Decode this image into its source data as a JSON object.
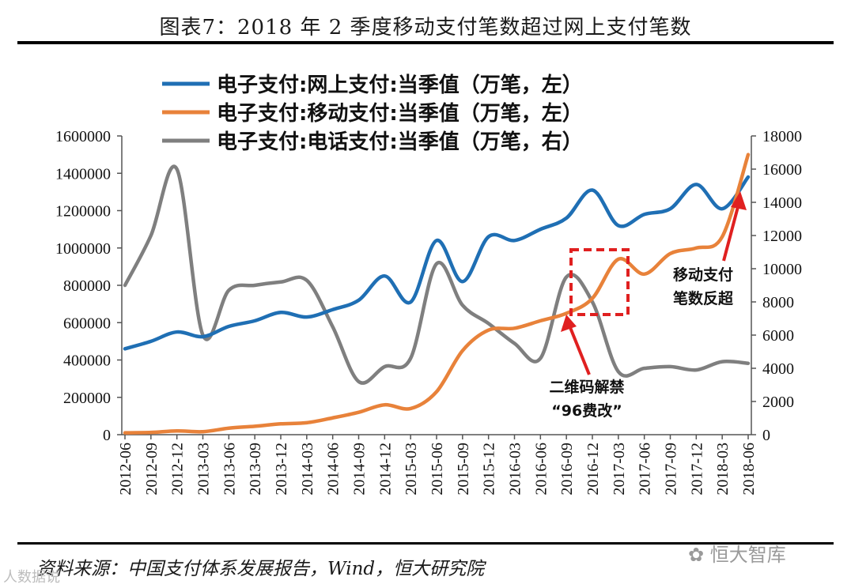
{
  "header": {
    "title": "图表7：2018 年 2 季度移动支付笔数超过网上支付笔数"
  },
  "footer": {
    "source": "资料来源：中国支付体系发展报告，Wind，恒大研究院",
    "watermark_right": "恒大智库",
    "watermark_left": "人数据说"
  },
  "colors": {
    "online": "#1f6fb4",
    "mobile": "#e8823a",
    "phone": "#7f7f7f",
    "highlight": "#e02020"
  },
  "chart_data": {
    "type": "line",
    "x": [
      "2012-06",
      "2012-09",
      "2012-12",
      "2013-03",
      "2013-06",
      "2013-09",
      "2013-12",
      "2014-03",
      "2014-06",
      "2014-09",
      "2014-12",
      "2015-03",
      "2015-06",
      "2015-09",
      "2015-12",
      "2016-03",
      "2016-06",
      "2016-09",
      "2016-12",
      "2017-03",
      "2017-06",
      "2017-09",
      "2017-12",
      "2018-03",
      "2018-06"
    ],
    "y_left": {
      "min": 0,
      "max": 1600000,
      "ticks": [
        "0",
        "200000",
        "400000",
        "600000",
        "800000",
        "1000000",
        "1200000",
        "1400000",
        "1600000"
      ]
    },
    "y_right": {
      "min": 0,
      "max": 18000,
      "ticks": [
        "0",
        "2000",
        "4000",
        "6000",
        "8000",
        "10000",
        "12000",
        "14000",
        "16000",
        "18000"
      ]
    },
    "series": [
      {
        "name": "电子支付:网上支付:当季值（万笔，左）",
        "axis": "left",
        "color": "#1f6fb4",
        "values": [
          460000,
          500000,
          550000,
          525000,
          580000,
          610000,
          655000,
          630000,
          670000,
          720000,
          850000,
          710000,
          1040000,
          820000,
          1060000,
          1040000,
          1100000,
          1160000,
          1310000,
          1120000,
          1180000,
          1210000,
          1340000,
          1210000,
          1380000
        ]
      },
      {
        "name": "电子支付:移动支付:当季值（万笔，左）",
        "axis": "left",
        "color": "#e8823a",
        "values": [
          10000,
          12000,
          20000,
          16000,
          35000,
          45000,
          58000,
          64000,
          90000,
          120000,
          160000,
          140000,
          230000,
          450000,
          560000,
          570000,
          610000,
          650000,
          730000,
          940000,
          860000,
          970000,
          1000000,
          1060000,
          1500000
        ]
      },
      {
        "name": "电子支付:电话支付:当季值（万笔，右）",
        "axis": "right",
        "color": "#7f7f7f",
        "values": [
          9000,
          12000,
          16000,
          6000,
          8700,
          9000,
          9200,
          9300,
          6500,
          3200,
          4100,
          4600,
          10300,
          7800,
          6700,
          5500,
          4600,
          9500,
          8000,
          3800,
          4000,
          4100,
          3900,
          4400,
          4300
        ]
      }
    ],
    "annotations": [
      {
        "text_lines": [
          "移动支付",
          "笔数反超"
        ]
      },
      {
        "text_lines": [
          "二维码解禁",
          "“96费改”"
        ]
      }
    ]
  }
}
